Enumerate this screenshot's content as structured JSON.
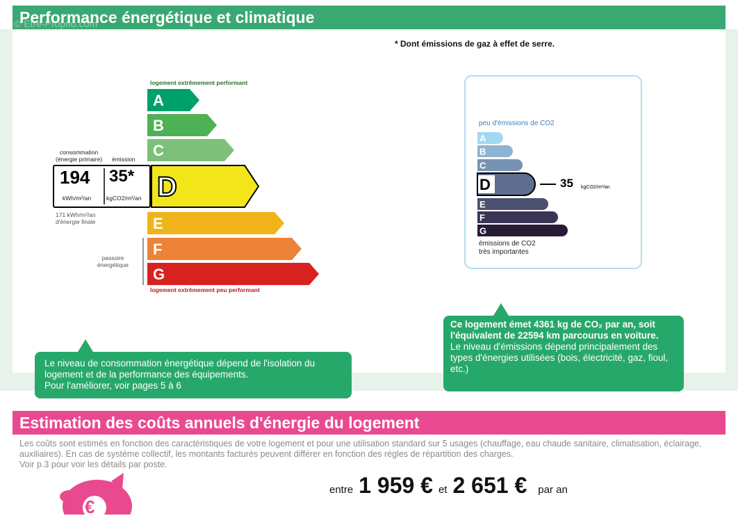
{
  "header": {
    "title": "Performance énergétique et climatique",
    "watermark": "© Etre-Proprio.com"
  },
  "note": "* Dont émissions de gaz à effet de serre.",
  "energy_label": {
    "top_caption": "logement extrêmement performant",
    "bottom_caption": "logement extrêmement peu performant",
    "active": "D",
    "classes": [
      {
        "letter": "A",
        "color": "#00a06d"
      },
      {
        "letter": "B",
        "color": "#4fb155"
      },
      {
        "letter": "C",
        "color": "#7dc07a"
      },
      {
        "letter": "D",
        "color": "#f2e61b"
      },
      {
        "letter": "E",
        "color": "#f0b41a"
      },
      {
        "letter": "F",
        "color": "#ec8336"
      },
      {
        "letter": "G",
        "color": "#d8221f"
      }
    ],
    "consumption": {
      "caption": [
        "consommation",
        "(énergie primaire)"
      ],
      "value": "194",
      "unit": "kWh/m²/an"
    },
    "emission": {
      "caption": "émission",
      "value": "35*",
      "unit": "kgCO2/m²/an"
    },
    "final_energy": [
      "171 kWh/m²/an",
      "d'énergie finale"
    ],
    "sieve_label": [
      "passoire",
      "énergétique"
    ]
  },
  "co2_label": {
    "top_caption": "peu d'émissions de CO2",
    "bottom_caption": [
      "émissions de CO2",
      "très importantes"
    ],
    "active": "D",
    "value": "35",
    "unit": "kgCO2/m²/an",
    "classes": [
      {
        "letter": "A",
        "color": "#a3d8f3"
      },
      {
        "letter": "B",
        "color": "#8db4d4"
      },
      {
        "letter": "C",
        "color": "#7793b3"
      },
      {
        "letter": "D",
        "color": "#5f6e8f"
      },
      {
        "letter": "E",
        "color": "#4c5172"
      },
      {
        "letter": "F",
        "color": "#3a3553"
      },
      {
        "letter": "G",
        "color": "#281b36"
      }
    ]
  },
  "left_bubble": {
    "paragraphs": [
      "Le niveau de consommation énergétique dépend de l'isolation du logement et de la performance des équipements.",
      "Pour l'améliorer, voir pages 5 à 6"
    ]
  },
  "right_bubble": {
    "bold": "Ce logement émet 4361  kg de CO₂ par an, soit l'équivalent de 22594 km parcourus en voiture.",
    "text": "Le niveau d'émissions dépend principalement des types d'énergies utilisées (bois, électricité, gaz, fioul, etc.)"
  },
  "cost": {
    "title": "Estimation des coûts annuels d'énergie du logement",
    "description": [
      "Les coûts sont estimés en fonction des caractéristiques de votre logement et pour une utilisation standard sur 5 usages (chauffage, eau chaude sanitaire, climatisation, éclairage, auxiliaires). En cas de système collectif, les montants facturés peuvent différer en fonction des règles de répartition des charges.",
      "Voir p.3 pour voir les détails par poste."
    ],
    "icon_symbol": "€",
    "between": "entre",
    "min": "1 959 €",
    "and": "et",
    "max": "2 651 €",
    "per_year": "par an"
  }
}
